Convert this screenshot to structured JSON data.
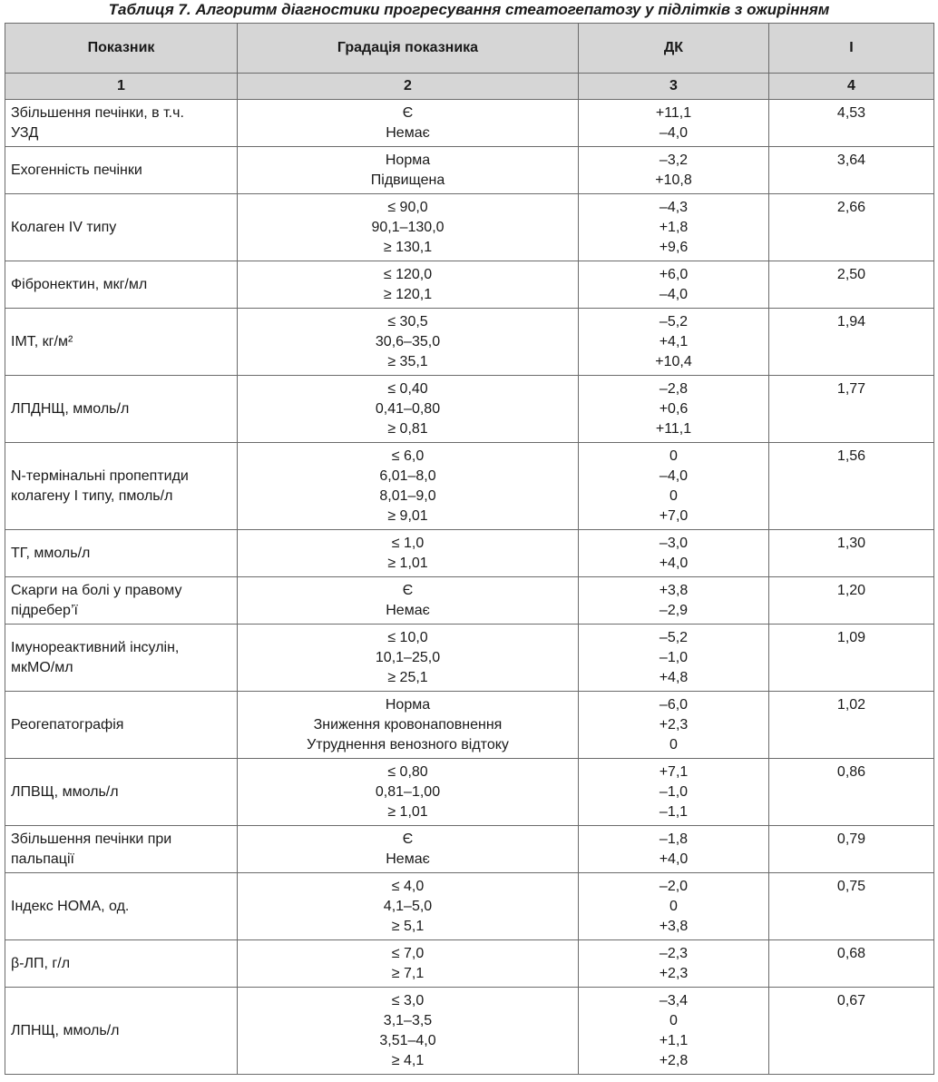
{
  "caption": "Таблиця 7. Алгоритм діагностики прогресування стеатогепатозу у підлітків з ожирінням",
  "headers": [
    "Показник",
    "Градація показника",
    "ДК",
    "I"
  ],
  "col_numbers": [
    "1",
    "2",
    "3",
    "4"
  ],
  "rows": [
    {
      "indicator": [
        "Збільшення печінки, в т.ч.",
        "УЗД"
      ],
      "grades": [
        "Є",
        "Немає"
      ],
      "dk": [
        "+11,1",
        "–4,0"
      ],
      "i": "4,53"
    },
    {
      "indicator": [
        "Ехогенність печінки"
      ],
      "grades": [
        "Норма",
        "Підвищена"
      ],
      "dk": [
        "–3,2",
        "+10,8"
      ],
      "i": "3,64"
    },
    {
      "indicator": [
        "Колаген IV типу"
      ],
      "grades": [
        "≤ 90,0",
        "90,1–130,0",
        "≥ 130,1"
      ],
      "dk": [
        "–4,3",
        "+1,8",
        "+9,6"
      ],
      "i": "2,66"
    },
    {
      "indicator": [
        "Фібронектин, мкг/мл"
      ],
      "grades": [
        "≤ 120,0",
        "≥ 120,1"
      ],
      "dk": [
        "+6,0",
        "–4,0"
      ],
      "i": "2,50"
    },
    {
      "indicator": [
        "ІМТ, кг/м²"
      ],
      "grades": [
        "≤ 30,5",
        "30,6–35,0",
        "≥ 35,1"
      ],
      "dk": [
        "–5,2",
        "+4,1",
        "+10,4"
      ],
      "i": "1,94"
    },
    {
      "indicator": [
        "ЛПДНЩ, ммоль/л"
      ],
      "grades": [
        "≤ 0,40",
        "0,41–0,80",
        "≥ 0,81"
      ],
      "dk": [
        "–2,8",
        "+0,6",
        "+11,1"
      ],
      "i": "1,77"
    },
    {
      "indicator": [
        "N-термінальні пропептиди",
        "колагену I типу, пмоль/л"
      ],
      "grades": [
        "≤ 6,0",
        "6,01–8,0",
        "8,01–9,0",
        "≥ 9,01"
      ],
      "dk": [
        "0",
        "–4,0",
        "0",
        "+7,0"
      ],
      "i": "1,56"
    },
    {
      "indicator": [
        "ТГ, ммоль/л"
      ],
      "grades": [
        "≤ 1,0",
        "≥ 1,01"
      ],
      "dk": [
        "–3,0",
        "+4,0"
      ],
      "i": "1,30"
    },
    {
      "indicator": [
        "Скарги на болі у правому",
        "підребер’ї"
      ],
      "grades": [
        "Є",
        "Немає"
      ],
      "dk": [
        "+3,8",
        "–2,9"
      ],
      "i": "1,20"
    },
    {
      "indicator": [
        "Імунореактивний інсулін,",
        "мкМО/мл"
      ],
      "grades": [
        "≤ 10,0",
        "10,1–25,0",
        "≥ 25,1"
      ],
      "dk": [
        "–5,2",
        "–1,0",
        "+4,8"
      ],
      "i": "1,09"
    },
    {
      "indicator": [
        "Реогепатографія"
      ],
      "grades": [
        "Норма",
        "Зниження кровонаповнення",
        "Утруднення венозного відтоку"
      ],
      "dk": [
        "–6,0",
        "+2,3",
        "0"
      ],
      "i": "1,02"
    },
    {
      "indicator": [
        "ЛПВЩ, ммоль/л"
      ],
      "grades": [
        "≤ 0,80",
        "0,81–1,00",
        "≥ 1,01"
      ],
      "dk": [
        "+7,1",
        "–1,0",
        "–1,1"
      ],
      "i": "0,86"
    },
    {
      "indicator": [
        "Збільшення печінки при",
        "пальпації"
      ],
      "grades": [
        "Є",
        "Немає"
      ],
      "dk": [
        "–1,8",
        "+4,0"
      ],
      "i": "0,79"
    },
    {
      "indicator": [
        "Індекс HOMA, од."
      ],
      "grades": [
        "≤ 4,0",
        "4,1–5,0",
        "≥ 5,1"
      ],
      "dk": [
        "–2,0",
        "0",
        "+3,8"
      ],
      "i": "0,75"
    },
    {
      "indicator": [
        "β-ЛП, г/л"
      ],
      "grades": [
        "≤ 7,0",
        "≥ 7,1"
      ],
      "dk": [
        "–2,3",
        "+2,3"
      ],
      "i": "0,68"
    },
    {
      "indicator": [
        "ЛПНЩ, ммоль/л"
      ],
      "grades": [
        "≤ 3,0",
        "3,1–3,5",
        "3,51–4,0",
        "≥ 4,1"
      ],
      "dk": [
        "–3,4",
        "0",
        "+1,1",
        "+2,8"
      ],
      "i": "0,67"
    }
  ]
}
